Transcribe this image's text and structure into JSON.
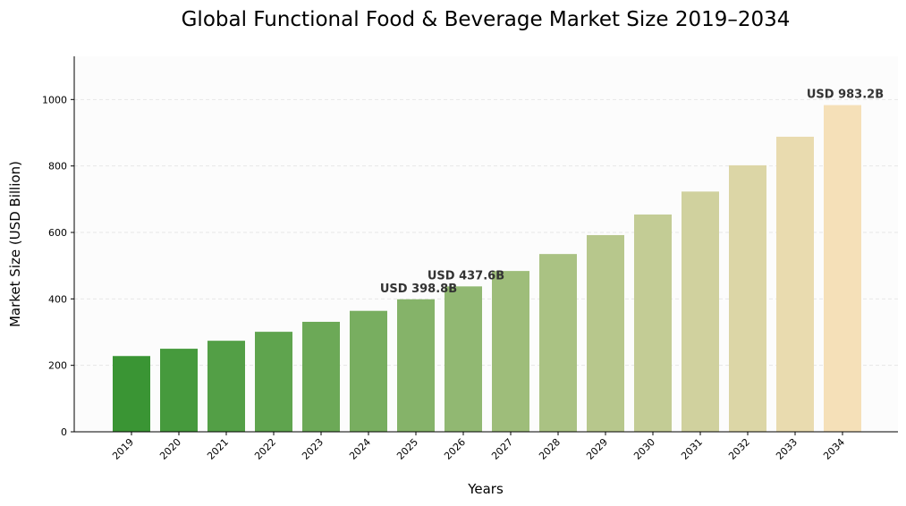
{
  "chart_data": {
    "type": "bar",
    "title": "Global Functional Food & Beverage Market Size 2019–2034",
    "xlabel": "Years",
    "ylabel": "Market Size (USD Billion)",
    "categories": [
      "2019",
      "2020",
      "2021",
      "2022",
      "2023",
      "2024",
      "2025",
      "2026",
      "2027",
      "2028",
      "2029",
      "2030",
      "2031",
      "2032",
      "2033",
      "2034"
    ],
    "values": [
      228,
      250,
      274,
      301,
      331,
      364,
      398.8,
      437.6,
      484,
      535,
      592,
      654,
      723,
      802,
      888,
      983.2
    ],
    "ylim": [
      0,
      1130
    ],
    "yticks": [
      0,
      200,
      400,
      600,
      800,
      1000
    ],
    "grid": "horizontal dashed",
    "colors": {
      "start": "#3a9534",
      "end": "#f5e0b8",
      "background": "#fcfcfc",
      "grid": "#e6e6e6",
      "annotation": "#333333"
    },
    "annotations": [
      {
        "category": "2025",
        "label": "USD 398.8B"
      },
      {
        "category": "2026",
        "label": "USD 437.6B"
      },
      {
        "category": "2034",
        "label": "USD 983.2B"
      }
    ]
  }
}
